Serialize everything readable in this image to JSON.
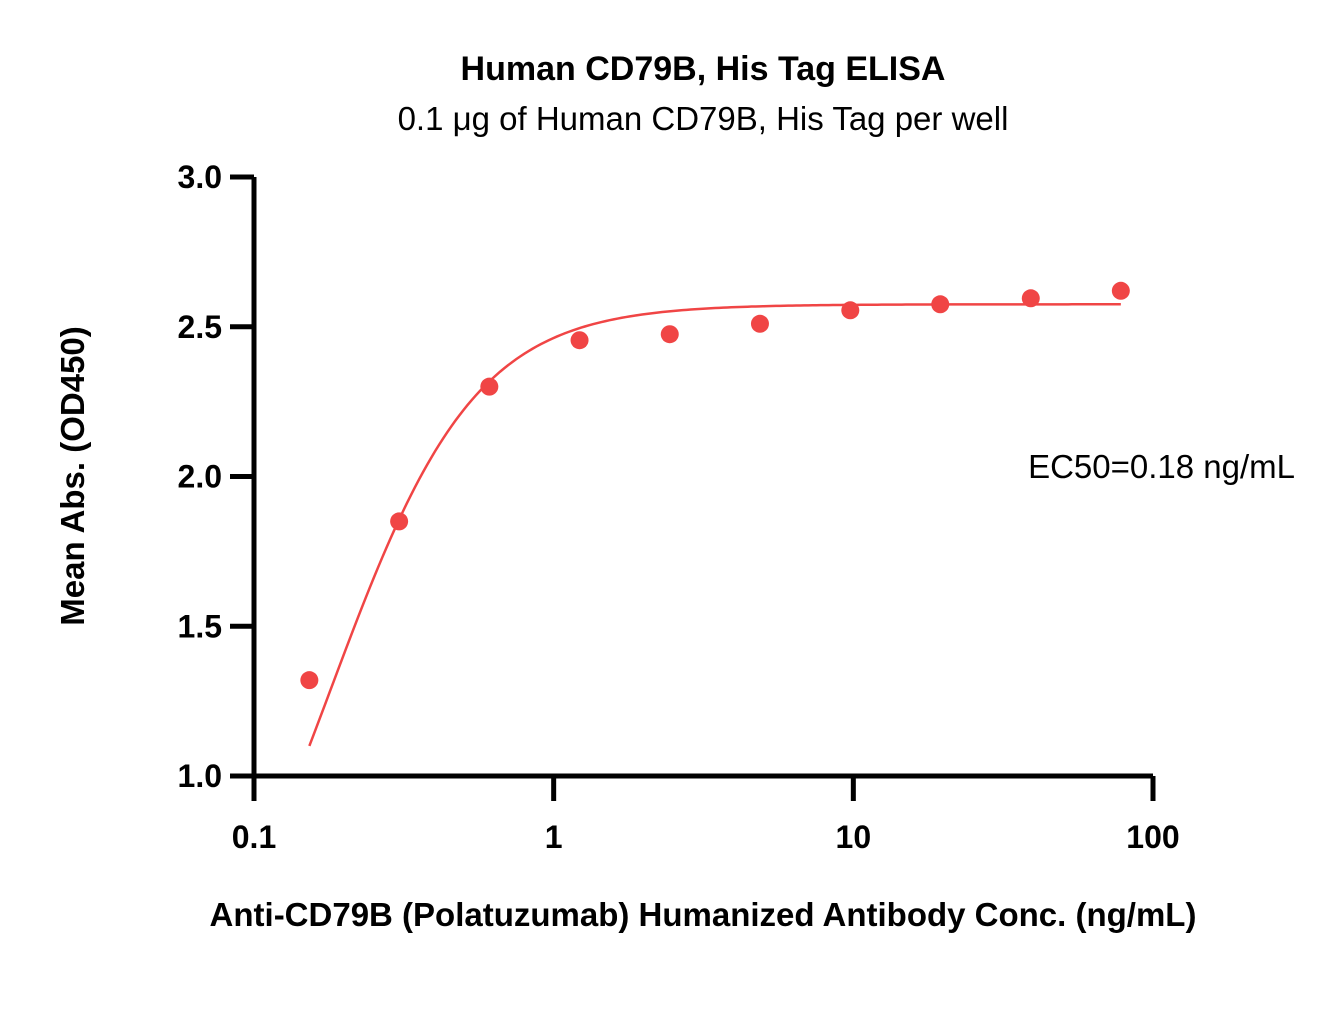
{
  "chart_data": {
    "type": "scatter",
    "title": "Human CD79B, His Tag ELISA",
    "subtitle": "0.1 μg of Human CD79B, His Tag per well",
    "xlabel": "Anti-CD79B (Polatuzumab) Humanized Antibody Conc. (ng/mL)",
    "ylabel": "Mean Abs. (OD450)",
    "xscale": "log",
    "xlim": [
      0.1,
      100
    ],
    "ylim": [
      1.0,
      3.0
    ],
    "xticks": [
      0.1,
      1,
      10,
      100
    ],
    "xtick_labels": [
      "0.1",
      "1",
      "10",
      "100"
    ],
    "yticks": [
      1.0,
      1.5,
      2.0,
      2.5,
      3.0
    ],
    "ytick_labels": [
      "1.0",
      "1.5",
      "2.0",
      "2.5",
      "3.0"
    ],
    "grid": false,
    "series": [
      {
        "color": "#f04545",
        "x": [
          0.153,
          0.305,
          0.61,
          1.22,
          2.44,
          4.88,
          9.77,
          19.5,
          39.1,
          78.1
        ],
        "y": [
          1.32,
          1.85,
          2.3,
          2.455,
          2.475,
          2.51,
          2.555,
          2.575,
          2.595,
          2.62
        ]
      }
    ],
    "fit_curve": {
      "model": "4PL",
      "bottom": 0.0,
      "top": 2.575,
      "ec50": 0.18,
      "hill": 1.8,
      "x_range": [
        0.153,
        78.1
      ],
      "color": "#f04545"
    },
    "annotation": "EC50=0.18 ng/mL"
  }
}
